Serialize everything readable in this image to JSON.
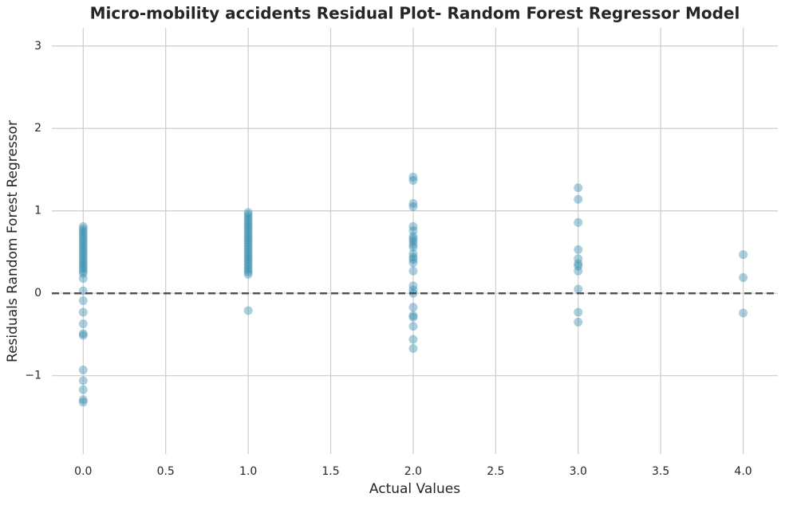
{
  "chart_data": {
    "type": "scatter",
    "title": "Micro-mobility accidents Residual Plot- Random Forest Regressor Model",
    "x_label": "Actual Values",
    "y_label": "Residuals Random Forest Regressor",
    "color": "#2e86ab",
    "grid": true,
    "xlim": [
      -0.19,
      4.21
    ],
    "ylim": [
      -1.95,
      3.22
    ],
    "xticks": [
      {
        "value": 0,
        "label": "0.0"
      },
      {
        "value": 0.5,
        "label": "0.5"
      },
      {
        "value": 1,
        "label": "1.0"
      },
      {
        "value": 1.5,
        "label": "1.5"
      },
      {
        "value": 2,
        "label": "2.0"
      },
      {
        "value": 2.5,
        "label": "2.5"
      },
      {
        "value": 3,
        "label": "3.0"
      },
      {
        "value": 3.5,
        "label": "3.5"
      },
      {
        "value": 4,
        "label": "4.0"
      }
    ],
    "yticks": [
      {
        "value": -1,
        "label": "−1"
      },
      0,
      1,
      2,
      3
    ],
    "x": [
      0,
      0,
      0,
      0,
      0,
      0,
      0,
      0,
      0,
      0,
      0,
      0,
      0,
      0,
      0,
      0,
      0,
      0,
      0,
      0,
      0,
      0,
      0,
      0,
      0,
      0,
      0,
      0,
      0,
      0,
      0,
      0,
      1,
      1,
      1,
      1,
      1,
      1,
      1,
      1,
      1,
      1,
      1,
      1,
      1,
      1,
      1,
      1,
      1,
      1,
      1,
      1,
      1,
      1,
      1,
      1,
      1,
      1,
      1,
      2,
      2,
      2,
      2,
      2,
      2,
      2,
      2,
      2,
      2,
      2,
      2,
      2,
      2,
      2,
      2,
      2,
      2,
      2,
      2,
      2,
      2,
      2,
      2,
      2,
      3,
      3,
      3,
      3,
      3,
      3,
      3,
      3,
      3,
      3,
      3,
      4,
      4,
      4
    ],
    "values": [
      0.81,
      0.78,
      0.75,
      0.72,
      0.69,
      0.66,
      0.63,
      0.6,
      0.57,
      0.54,
      0.51,
      0.48,
      0.45,
      0.42,
      0.39,
      0.36,
      0.33,
      0.3,
      0.27,
      0.24,
      0.18,
      0.03,
      -0.09,
      -0.23,
      -0.37,
      -0.49,
      -0.51,
      -0.93,
      -1.06,
      -1.17,
      -1.29,
      -1.32,
      0.98,
      0.95,
      0.92,
      0.89,
      0.86,
      0.83,
      0.8,
      0.77,
      0.74,
      0.71,
      0.68,
      0.65,
      0.62,
      0.59,
      0.56,
      0.53,
      0.5,
      0.47,
      0.44,
      0.41,
      0.38,
      0.35,
      0.32,
      0.29,
      0.26,
      0.23,
      -0.21,
      1.41,
      1.37,
      1.09,
      1.05,
      0.81,
      0.76,
      0.69,
      0.66,
      0.63,
      0.59,
      0.56,
      0.48,
      0.44,
      0.41,
      0.37,
      0.27,
      0.09,
      0.04,
      0.0,
      -0.17,
      -0.27,
      -0.29,
      -0.4,
      -0.56,
      -0.67,
      1.28,
      1.14,
      0.86,
      0.53,
      0.42,
      0.36,
      0.33,
      0.27,
      0.05,
      -0.23,
      -0.35,
      0.47,
      0.19,
      -0.24
    ]
  }
}
